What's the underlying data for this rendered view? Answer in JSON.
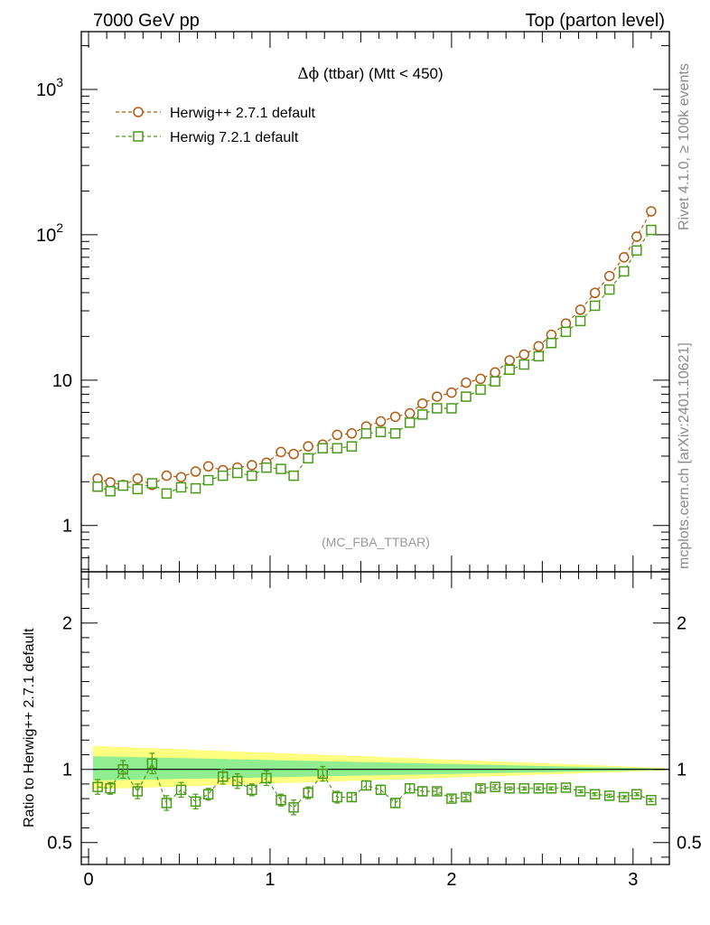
{
  "header": {
    "left": "7000 GeV pp",
    "right": "Top (parton level)"
  },
  "side_labels": {
    "rivet": "Rivet 4.1.0, ≥ 100k events",
    "mcplots": "mcplots.cern.ch [arXiv:2401.10621]"
  },
  "watermark": "(MC_FBA_TTBAR)",
  "chart_data": {
    "type": "line",
    "title": "Δϕ (ttbar) (Mtt < 450)",
    "title_symbol": "Δϕ",
    "title_rest": " (ttbar) (Mtt < 450)",
    "xlabel": "",
    "xlim": [
      -0.04,
      3.2
    ],
    "x_ticks": [
      "0",
      "1",
      "2",
      "3"
    ],
    "x_tick_values": [
      0,
      1,
      2,
      3
    ],
    "main": {
      "yscale": "log",
      "ylim": [
        0.48,
        2500
      ],
      "y_ticks": [
        {
          "value": 1,
          "base": "1",
          "exp": ""
        },
        {
          "value": 10,
          "base": "10",
          "exp": ""
        },
        {
          "value": 100,
          "base": "10",
          "exp": "2"
        },
        {
          "value": 1000,
          "base": "10",
          "exp": "3"
        }
      ]
    },
    "ratio": {
      "ylabel": "Ratio to Herwig++ 2.7.1 default",
      "ylim": [
        0.35,
        2.35
      ],
      "y_ticks": [
        "0.5",
        "1",
        "2"
      ],
      "y_tick_values": [
        0.5,
        1,
        2
      ],
      "reference": 1
    },
    "x": [
      0.05,
      0.12,
      0.19,
      0.27,
      0.35,
      0.43,
      0.51,
      0.59,
      0.66,
      0.74,
      0.82,
      0.9,
      0.98,
      1.06,
      1.13,
      1.21,
      1.29,
      1.37,
      1.45,
      1.53,
      1.61,
      1.69,
      1.77,
      1.84,
      1.92,
      2.0,
      2.08,
      2.16,
      2.24,
      2.32,
      2.4,
      2.48,
      2.55,
      2.63,
      2.71,
      2.79,
      2.87,
      2.95,
      3.02,
      3.1
    ],
    "series": [
      {
        "name": "Herwig++ 2.7.1 default",
        "color": "#b05a10",
        "marker": "circle",
        "values": [
          2.1,
          1.98,
          1.9,
          2.1,
          1.9,
          2.2,
          2.15,
          2.35,
          2.55,
          2.4,
          2.5,
          2.6,
          2.7,
          3.2,
          3.1,
          3.5,
          3.6,
          4.2,
          4.3,
          4.8,
          5.2,
          5.6,
          5.9,
          6.9,
          7.7,
          8.2,
          9.6,
          10.2,
          11.3,
          13.7,
          15,
          17.1,
          20.5,
          24.5,
          30.5,
          39.8,
          52,
          70,
          97,
          145
        ]
      },
      {
        "name": "Herwig 7.2.1 default",
        "color": "#4c9a1a",
        "marker": "square",
        "values": [
          1.85,
          1.72,
          1.88,
          1.78,
          1.95,
          1.66,
          1.83,
          1.8,
          2.05,
          2.2,
          2.3,
          2.2,
          2.5,
          2.45,
          2.2,
          2.9,
          3.4,
          3.4,
          3.5,
          4.3,
          4.4,
          4.3,
          5.1,
          5.8,
          6.4,
          6.4,
          7.7,
          8.6,
          9.8,
          11.8,
          12.8,
          14.6,
          18,
          21.5,
          25.5,
          32.5,
          42,
          56,
          78,
          108
        ]
      }
    ],
    "ratio_values": [
      0.88,
      0.87,
      1.0,
      0.85,
      1.04,
      0.77,
      0.86,
      0.78,
      0.83,
      0.95,
      0.92,
      0.86,
      0.94,
      0.79,
      0.74,
      0.84,
      0.97,
      0.81,
      0.81,
      0.89,
      0.86,
      0.77,
      0.87,
      0.85,
      0.85,
      0.8,
      0.81,
      0.87,
      0.88,
      0.87,
      0.87,
      0.87,
      0.87,
      0.875,
      0.85,
      0.83,
      0.82,
      0.81,
      0.83,
      0.79
    ],
    "ratio_errors": [
      0.05,
      0.04,
      0.06,
      0.05,
      0.07,
      0.05,
      0.05,
      0.05,
      0.04,
      0.05,
      0.05,
      0.04,
      0.05,
      0.04,
      0.05,
      0.04,
      0.05,
      0.04,
      0.03,
      0.03,
      0.03,
      0.03,
      0.03,
      0.03,
      0.02,
      0.02,
      0.02,
      0.02,
      0.015,
      0.01,
      0.01,
      0.01,
      0.01,
      0.01,
      0.01,
      0.01,
      0.01,
      0.01,
      0.01,
      0.01
    ],
    "bands": {
      "yellow": {
        "color": "#ffff80",
        "half_width_start": 0.16,
        "half_width_end": 0.01
      },
      "green": {
        "color": "#90ee90",
        "half_width_start": 0.09,
        "half_width_end": 0.005
      }
    }
  }
}
